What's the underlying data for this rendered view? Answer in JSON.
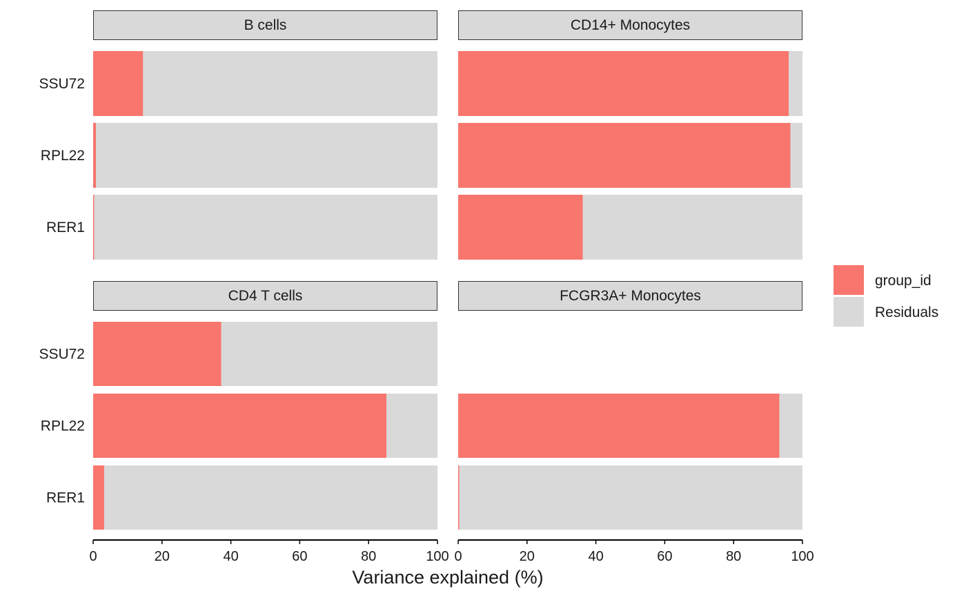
{
  "chart_data": {
    "type": "bar",
    "orientation": "horizontal",
    "stacked": true,
    "xlabel": "Variance explained (%)",
    "ylabel": "",
    "xlim": [
      0,
      100
    ],
    "x_ticks": [
      0,
      20,
      40,
      60,
      80,
      100
    ],
    "categories": [
      "SSU72",
      "RPL22",
      "RER1"
    ],
    "legend": {
      "position": "right",
      "items": [
        {
          "label": "group_id",
          "color": "#f8766d"
        },
        {
          "label": "Residuals",
          "color": "#d9d9d9"
        }
      ]
    },
    "panels": [
      {
        "title": "B cells",
        "bars": [
          {
            "category": "SSU72",
            "group_id": 14.5,
            "Residuals": 85.5
          },
          {
            "category": "RPL22",
            "group_id": 0.8,
            "Residuals": 99.2
          },
          {
            "category": "RER1",
            "group_id": 0.3,
            "Residuals": 99.7
          }
        ]
      },
      {
        "title": "CD14+ Monocytes",
        "bars": [
          {
            "category": "SSU72",
            "group_id": 96,
            "Residuals": 4
          },
          {
            "category": "RPL22",
            "group_id": 96.5,
            "Residuals": 3.5
          },
          {
            "category": "RER1",
            "group_id": 36.2,
            "Residuals": 63.8
          }
        ]
      },
      {
        "title": "CD4 T cells",
        "bars": [
          {
            "category": "SSU72",
            "group_id": 37.2,
            "Residuals": 62.8
          },
          {
            "category": "RPL22",
            "group_id": 85.2,
            "Residuals": 14.8
          },
          {
            "category": "RER1",
            "group_id": 3.2,
            "Residuals": 96.8
          }
        ]
      },
      {
        "title": "FCGR3A+ Monocytes",
        "bars": [
          {
            "category": "RPL22",
            "group_id": 93.3,
            "Residuals": 6.7
          },
          {
            "category": "RER1",
            "group_id": 0.3,
            "Residuals": 99.7
          }
        ]
      }
    ]
  }
}
